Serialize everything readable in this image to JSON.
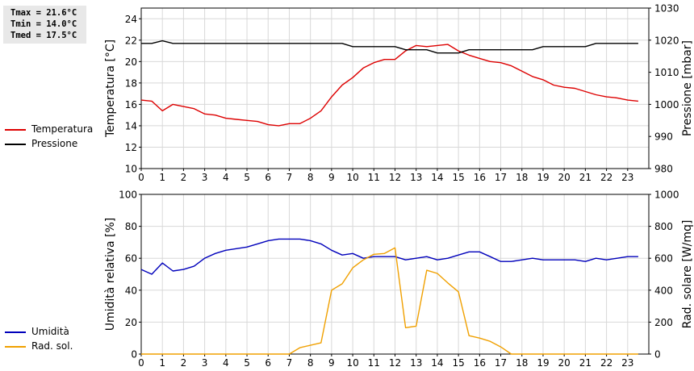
{
  "stats": {
    "tmax": "Tmax = 21.6°C",
    "tmin": "Tmin = 14.0°C",
    "tmed": "Tmed = 17.5°C"
  },
  "legend_top": [
    {
      "label": "Temperatura",
      "color": "#dd0000"
    },
    {
      "label": "Pressione",
      "color": "#000000"
    }
  ],
  "legend_bottom": [
    {
      "label": "Umidità",
      "color": "#0000bb"
    },
    {
      "label": "Rad. sol.",
      "color": "#f0a000"
    }
  ],
  "chart_data": [
    {
      "type": "line",
      "xlim": [
        0,
        24
      ],
      "xticks": [
        "0",
        "1",
        "2",
        "3",
        "4",
        "5",
        "6",
        "7",
        "8",
        "9",
        "10",
        "11",
        "12",
        "13",
        "14",
        "15",
        "16",
        "17",
        "18",
        "19",
        "20",
        "21",
        "22",
        "23"
      ],
      "ylabel": "Temperatura [°C]",
      "ylim": [
        10,
        25
      ],
      "yticks": [
        "10",
        "12",
        "14",
        "16",
        "18",
        "20",
        "22",
        "24"
      ],
      "y2label": "Pressione [mbar]",
      "y2lim": [
        980,
        1030
      ],
      "y2ticks": [
        "980",
        "990",
        "1000",
        "1010",
        "1020",
        "1030"
      ],
      "grid": true,
      "legend_position": "left",
      "series": [
        {
          "name": "Temperatura",
          "axis": "left",
          "color": "#dd0000",
          "x": [
            0,
            0.5,
            1,
            1.5,
            2,
            2.5,
            3,
            3.5,
            4,
            4.5,
            5,
            5.5,
            6,
            6.5,
            7,
            7.5,
            8,
            8.5,
            9,
            9.5,
            10,
            10.5,
            11,
            11.5,
            12,
            12.5,
            13,
            13.5,
            14,
            14.5,
            15,
            15.5,
            16,
            16.5,
            17,
            17.5,
            18,
            18.5,
            19,
            19.5,
            20,
            20.5,
            21,
            21.5,
            22,
            22.5,
            23,
            23.5
          ],
          "y": [
            16.4,
            16.3,
            15.4,
            16.0,
            15.8,
            15.6,
            15.1,
            15.0,
            14.7,
            14.6,
            14.5,
            14.4,
            14.1,
            14.0,
            14.2,
            14.2,
            14.7,
            15.4,
            16.7,
            17.8,
            18.5,
            19.4,
            19.9,
            20.2,
            20.2,
            21.0,
            21.5,
            21.4,
            21.5,
            21.6,
            21.0,
            20.6,
            20.3,
            20.0,
            19.9,
            19.6,
            19.1,
            18.6,
            18.3,
            17.8,
            17.6,
            17.5,
            17.2,
            16.9,
            16.7,
            16.6,
            16.4,
            16.3
          ]
        },
        {
          "name": "Pressione",
          "axis": "right",
          "color": "#000000",
          "x": [
            0,
            0.5,
            1,
            1.5,
            2,
            2.5,
            3,
            3.5,
            4,
            4.5,
            5,
            5.5,
            6,
            6.5,
            7,
            7.5,
            8,
            8.5,
            9,
            9.5,
            10,
            10.5,
            11,
            11.5,
            12,
            12.5,
            13,
            13.5,
            14,
            14.5,
            15,
            15.5,
            16,
            16.5,
            17,
            17.5,
            18,
            18.5,
            19,
            19.5,
            20,
            20.5,
            21,
            21.5,
            22,
            22.5,
            23,
            23.5
          ],
          "y": [
            1019,
            1019,
            1019.8,
            1019,
            1019,
            1019,
            1019,
            1019,
            1019,
            1019,
            1019,
            1019,
            1019,
            1019,
            1019,
            1019,
            1019,
            1019,
            1019,
            1019,
            1018,
            1018,
            1018,
            1018,
            1018,
            1017,
            1017,
            1017,
            1016,
            1016,
            1016,
            1017,
            1017,
            1017,
            1017,
            1017,
            1017,
            1017,
            1018,
            1018,
            1018,
            1018,
            1018,
            1019,
            1019,
            1019,
            1019,
            1019
          ]
        }
      ]
    },
    {
      "type": "line",
      "xlim": [
        0,
        24
      ],
      "xticks": [
        "0",
        "1",
        "2",
        "3",
        "4",
        "5",
        "6",
        "7",
        "8",
        "9",
        "10",
        "11",
        "12",
        "13",
        "14",
        "15",
        "16",
        "17",
        "18",
        "19",
        "20",
        "21",
        "22",
        "23"
      ],
      "ylabel": "Umidità relativa [%]",
      "ylim": [
        0,
        100
      ],
      "yticks": [
        "0",
        "20",
        "40",
        "60",
        "80",
        "100"
      ],
      "y2label": "Rad. solare [W/mq]",
      "y2lim": [
        0,
        1000
      ],
      "y2ticks": [
        "0",
        "200",
        "400",
        "600",
        "800",
        "1000"
      ],
      "grid": true,
      "legend_position": "left",
      "series": [
        {
          "name": "Umidità",
          "axis": "left",
          "color": "#0000bb",
          "x": [
            0,
            0.5,
            1,
            1.5,
            2,
            2.5,
            3,
            3.5,
            4,
            4.5,
            5,
            5.5,
            6,
            6.5,
            7,
            7.5,
            8,
            8.5,
            9,
            9.5,
            10,
            10.5,
            11,
            11.5,
            12,
            12.5,
            13,
            13.5,
            14,
            14.5,
            15,
            15.5,
            16,
            16.5,
            17,
            17.5,
            18,
            18.5,
            19,
            19.5,
            20,
            20.5,
            21,
            21.5,
            22,
            22.5,
            23,
            23.5
          ],
          "y": [
            53,
            50,
            57,
            52,
            53,
            55,
            60,
            63,
            65,
            66,
            67,
            69,
            71,
            72,
            72,
            72,
            71,
            69,
            65,
            62,
            63,
            60,
            61,
            61,
            61,
            59,
            60,
            61,
            59,
            60,
            62,
            64,
            64,
            61,
            58,
            58,
            59,
            60,
            59,
            59,
            59,
            59,
            58,
            60,
            59,
            60,
            61,
            61
          ]
        },
        {
          "name": "Rad. sol.",
          "axis": "right",
          "color": "#f0a000",
          "x": [
            0,
            0.5,
            1,
            1.5,
            2,
            2.5,
            3,
            3.5,
            4,
            4.5,
            5,
            5.5,
            6,
            6.5,
            7,
            7.5,
            8,
            8.5,
            9,
            9.5,
            10,
            10.5,
            11,
            11.5,
            12,
            12.5,
            13,
            13.5,
            14,
            14.5,
            15,
            15.5,
            16,
            16.5,
            17,
            17.5,
            18,
            18.5,
            19,
            19.5,
            20,
            20.5,
            21,
            21.5,
            22,
            22.5,
            23,
            23.5
          ],
          "y": [
            0,
            0,
            0,
            0,
            0,
            0,
            0,
            0,
            0,
            0,
            0,
            0,
            0,
            0,
            0,
            40,
            55,
            70,
            400,
            440,
            540,
            590,
            625,
            630,
            665,
            165,
            175,
            525,
            505,
            445,
            390,
            115,
            100,
            80,
            45,
            0,
            0,
            0,
            0,
            0,
            0,
            0,
            0,
            0,
            0,
            0,
            0,
            0
          ]
        }
      ]
    }
  ]
}
